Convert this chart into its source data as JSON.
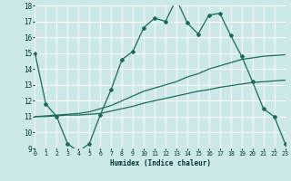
{
  "xlabel": "Humidex (Indice chaleur)",
  "bg_color": "#cde8e8",
  "grid_color": "#b0d8d8",
  "line_color": "#1a6b5a",
  "x_min": 0,
  "x_max": 23,
  "y_min": 9,
  "y_max": 18,
  "line1_x": [
    0,
    1,
    2,
    3,
    4,
    5,
    6,
    7,
    8,
    9,
    10,
    11,
    12,
    13,
    14,
    15,
    16,
    17,
    18,
    19,
    20,
    21,
    22,
    23
  ],
  "line1_y": [
    15.0,
    11.8,
    11.0,
    9.3,
    8.8,
    9.3,
    11.1,
    12.7,
    14.6,
    15.1,
    16.6,
    17.2,
    17.0,
    18.4,
    16.9,
    16.2,
    17.4,
    17.5,
    16.1,
    14.8,
    13.2,
    11.5,
    11.0,
    9.3
  ],
  "line2_x": [
    0,
    1,
    2,
    3,
    4,
    5,
    6,
    7,
    8,
    9,
    10,
    11,
    12,
    13,
    14,
    15,
    16,
    17,
    18,
    19,
    20,
    21,
    22,
    23
  ],
  "line2_y": [
    11.0,
    11.05,
    11.1,
    11.15,
    11.2,
    11.3,
    11.5,
    11.7,
    12.0,
    12.3,
    12.6,
    12.8,
    13.0,
    13.2,
    13.5,
    13.7,
    14.0,
    14.2,
    14.4,
    14.6,
    14.7,
    14.8,
    14.85,
    14.9
  ],
  "line3_x": [
    0,
    1,
    2,
    3,
    4,
    5,
    6,
    7,
    8,
    9,
    10,
    11,
    12,
    13,
    14,
    15,
    16,
    17,
    18,
    19,
    20,
    21,
    22,
    23
  ],
  "line3_y": [
    11.0,
    11.0,
    11.05,
    11.1,
    11.1,
    11.15,
    11.2,
    11.35,
    11.5,
    11.65,
    11.85,
    12.0,
    12.15,
    12.3,
    12.45,
    12.6,
    12.7,
    12.85,
    12.95,
    13.05,
    13.15,
    13.2,
    13.25,
    13.3
  ]
}
